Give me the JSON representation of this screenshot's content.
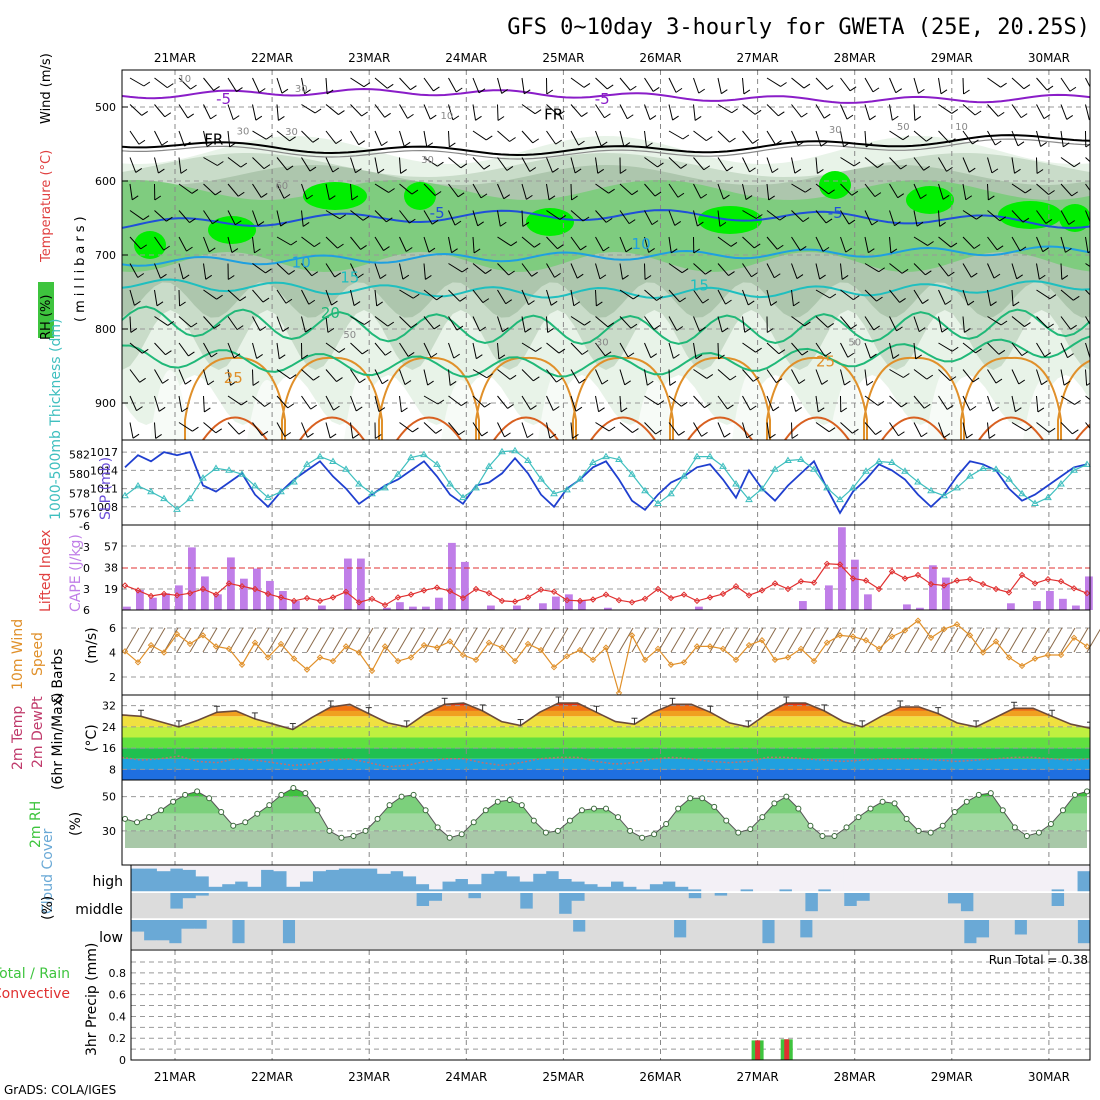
{
  "title": "GFS 0~10day 3-hourly for GWETA (25E, 20.25S)",
  "footer": "GrADS: COLA/IGES",
  "run_total": "Run Total = 0.38",
  "colors": {
    "rh_green": "#3ec43e",
    "lime": "#00ee00",
    "frz": "#000000",
    "t_purple": "#8a1dc8",
    "t_blue": "#1f4fd8",
    "t_lblue": "#1fa0e0",
    "t_teal": "#1fbfbf",
    "t_green": "#20b878",
    "t_orange": "#e0902a",
    "cape": "#c07ee8",
    "lifted": "#e03030",
    "wind10": "#e0902a",
    "temp_dew": "#c03a6b",
    "cloud": "#6aa9d6",
    "rain": "#e03030",
    "precip": "#3ec43e",
    "slp": "#1f3fcf",
    "thick": "#3fbfbf"
  },
  "chart_data": [
    {
      "type": "heatmap",
      "name": "upper_air",
      "ylabel_parts": [
        "RH (%)",
        "Temperature (°C)",
        "Wind (m/s)"
      ],
      "ylabel_unit": "(millibars)",
      "x": [
        "21MAR",
        "22MAR",
        "23MAR",
        "24MAR",
        "25MAR",
        "26MAR",
        "27MAR",
        "28MAR",
        "29MAR",
        "30MAR"
      ],
      "yticks": [
        500,
        600,
        700,
        800,
        900
      ],
      "ylim": [
        950,
        450
      ],
      "contour_labels": [
        {
          "text": "-5",
          "x": "21.5MAR",
          "level": 496
        },
        {
          "text": "-5",
          "x": "25.4MAR",
          "level": 496
        },
        {
          "text": "FR",
          "x": "21.4MAR",
          "level": 551
        },
        {
          "text": "FR",
          "x": "24.9MAR",
          "level": 517
        },
        {
          "text": "-5",
          "x": "23.7MAR",
          "level": 650
        },
        {
          "text": "-5",
          "x": "27.8MAR",
          "level": 650
        },
        {
          "text": "10",
          "x": "22.3MAR",
          "level": 717
        },
        {
          "text": "10",
          "x": "25.8MAR",
          "level": 692
        },
        {
          "text": "15",
          "x": "22.8MAR",
          "level": 737
        },
        {
          "text": "15",
          "x": "26.4MAR",
          "level": 748
        },
        {
          "text": "20",
          "x": "22.6MAR",
          "level": 785
        },
        {
          "text": "25",
          "x": "21.6MAR",
          "level": 873
        },
        {
          "text": "25",
          "x": "27.7MAR",
          "level": 851
        },
        {
          "text": "10",
          "x": "21.1MAR",
          "level": 466
        },
        {
          "text": "10",
          "x": "23.8MAR",
          "level": 516
        },
        {
          "text": "30",
          "x": "21.7MAR",
          "level": 537
        },
        {
          "text": "30",
          "x": "22.2MAR",
          "level": 538
        },
        {
          "text": "30",
          "x": "23.6MAR",
          "level": 576
        },
        {
          "text": "30",
          "x": "27.8MAR",
          "level": 535
        },
        {
          "text": "50",
          "x": "28.5MAR",
          "level": 531
        },
        {
          "text": "10",
          "x": "29.1MAR",
          "level": 531
        },
        {
          "text": "50",
          "x": "22.8MAR",
          "level": 812
        },
        {
          "text": "30",
          "x": "25.4MAR",
          "level": 822
        },
        {
          "text": "50",
          "x": "28.0MAR",
          "level": 822
        },
        {
          "text": "60",
          "x": "22.1MAR",
          "level": 611
        },
        {
          "text": "30",
          "x": "22.3MAR",
          "level": 480
        }
      ]
    },
    {
      "type": "line",
      "name": "slp_thickness",
      "ylabel_left": "1000-500mb Thickness (dm)",
      "ylabel_right": "SLP (mb)",
      "yticks_left": [
        576,
        578,
        580,
        582
      ],
      "yticks_right": [
        1008,
        1011,
        1014,
        1017
      ],
      "series": [
        {
          "name": "SLP (mb)",
          "values": [
            1014.5,
            1016.5,
            1015.5,
            1017.0,
            1016.5,
            1017.0,
            1011.5,
            1010.5,
            1012.0,
            1013.5,
            1010.0,
            1008.0,
            1010.5,
            1012.5,
            1014.0,
            1015.5,
            1013.0,
            1011.0,
            1008.5,
            1010.0,
            1011.5,
            1012.5,
            1014.0,
            1015.5,
            1013.0,
            1010.0,
            1008.5,
            1011.5,
            1012.0,
            1013.5,
            1016.0,
            1013.5,
            1010.0,
            1008.0,
            1011.0,
            1012.5,
            1014.5,
            1015.5,
            1012.5,
            1009.0,
            1007.5,
            1010.0,
            1012.0,
            1013.0,
            1014.5,
            1015.0,
            1012.5,
            1009.5,
            1014.0,
            1011.0,
            1009.0,
            1011.5,
            1013.5,
            1015.5,
            1011.0,
            1007.0,
            1010.5,
            1012.5,
            1015.0,
            1014.0,
            1012.5,
            1010.0,
            1008.0,
            1010.0,
            1013.0,
            1015.5,
            1015.0,
            1014.0,
            1011.0,
            1009.0,
            1010.0,
            1011.5,
            1013.0,
            1014.5,
            1015.0
          ]
        },
        {
          "name": "1000-500mb Thickness (dm)",
          "values": [
            577.8,
            578.8,
            578.2,
            577.5,
            576.4,
            577.5,
            579.6,
            580.6,
            580.4,
            580.0,
            578.8,
            577.6,
            578.2,
            579.2,
            581.0,
            581.8,
            581.3,
            580.5,
            579.0,
            578.0,
            578.6,
            580.0,
            581.7,
            582.0,
            581.0,
            579.0,
            577.6,
            578.6,
            580.8,
            582.3,
            582.4,
            581.4,
            579.5,
            578.0,
            578.4,
            579.5,
            581.2,
            581.8,
            581.5,
            580.0,
            578.3,
            577.0,
            578.0,
            579.8,
            581.8,
            581.8,
            580.8,
            579.0,
            577.4,
            578.5,
            580.5,
            581.4,
            581.5,
            580.5,
            578.6,
            577.4,
            578.6,
            580.3,
            581.3,
            581.2,
            580.3,
            579.2,
            578.3,
            577.8,
            578.6,
            579.8,
            580.6,
            580.5,
            579.5,
            578.0,
            577.0,
            577.6,
            579.0,
            580.4,
            581.0
          ]
        }
      ]
    },
    {
      "type": "bar",
      "name": "cape_li",
      "ylabel_left": "Lifted Index",
      "ylabel_right": "CAPE (J/kg)",
      "yticks_left": [
        "-6",
        "-3",
        "0",
        "3",
        "6"
      ],
      "yticks_right": [
        "19",
        "38",
        "57"
      ],
      "series": [
        {
          "name": "CAPE (J/kg)",
          "values": [
            3,
            18,
            11,
            15,
            22,
            56,
            30,
            14,
            47,
            28,
            37,
            26,
            17,
            8,
            0,
            4,
            0,
            46,
            46,
            0,
            2,
            7,
            3,
            3,
            11,
            60,
            43,
            0,
            4,
            0,
            4,
            0,
            6,
            12,
            14,
            9,
            0,
            2,
            0,
            0,
            0,
            0,
            0,
            0,
            3,
            0,
            0,
            0,
            0,
            0,
            0,
            0,
            8,
            0,
            22,
            74,
            45,
            14,
            0,
            0,
            5,
            2,
            40,
            29,
            0,
            0,
            0,
            0,
            6,
            0,
            8,
            17,
            10,
            4,
            30
          ]
        },
        {
          "name": "Lifted Index",
          "values": [
            2.5,
            3.2,
            4.0,
            3.7,
            3.9,
            3.6,
            3.0,
            3.8,
            2.2,
            2.6,
            3.0,
            3.7,
            4.2,
            4.7,
            4.3,
            4.7,
            4.2,
            3.4,
            4.9,
            4.4,
            5.3,
            4.2,
            3.8,
            3.2,
            2.8,
            3.3,
            4.3,
            3.0,
            3.6,
            4.7,
            4.8,
            4.2,
            3.1,
            3.4,
            4.6,
            4.7,
            4.5,
            3.8,
            4.6,
            4.9,
            4.4,
            3.0,
            4.3,
            3.8,
            4.7,
            4.2,
            3.7,
            2.6,
            3.9,
            3.2,
            2.2,
            3.0,
            1.9,
            2.1,
            -0.6,
            -0.5,
            1.5,
            1.8,
            3.0,
            0.5,
            1.5,
            1.0,
            2.3,
            2.5,
            1.8,
            1.6,
            2.3,
            3.0,
            3.5,
            1.0,
            2.2,
            1.6,
            1.9,
            2.9,
            3.6
          ]
        }
      ]
    },
    {
      "type": "line",
      "name": "wind10",
      "ylabel": "10m Wind Speed & Barbs (m/s)",
      "yticks": [
        2,
        4,
        6
      ],
      "series": [
        {
          "name": "Speed",
          "values": [
            4.1,
            3.2,
            4.6,
            4.0,
            5.5,
            4.7,
            5.4,
            4.5,
            4.3,
            3.0,
            4.8,
            3.6,
            4.7,
            3.5,
            2.6,
            3.6,
            3.3,
            4.5,
            4.0,
            2.5,
            4.5,
            3.3,
            3.6,
            4.6,
            4.4,
            4.9,
            3.8,
            3.4,
            4.8,
            4.4,
            3.3,
            4.7,
            4.2,
            2.8,
            3.7,
            4.2,
            3.4,
            4.4,
            0.7,
            5.4,
            3.4,
            4.3,
            3.0,
            3.2,
            4.5,
            4.5,
            4.3,
            3.4,
            4.6,
            5.0,
            3.4,
            3.6,
            4.3,
            3.3,
            4.8,
            5.4,
            5.3,
            5.0,
            4.3,
            5.3,
            5.8,
            6.6,
            5.2,
            5.9,
            6.3,
            5.4,
            4.0,
            4.9,
            3.6,
            2.9,
            3.5,
            3.8,
            3.8,
            5.2,
            4.5
          ]
        }
      ]
    },
    {
      "type": "area",
      "name": "temp2m",
      "ylabel": "2m Temp 2m DewPt (6hr Min/Max) (°C)",
      "yticks": [
        8,
        16,
        24,
        32
      ],
      "series": [
        {
          "name": "2m Temp",
          "values": [
            28.5,
            28.0,
            26.0,
            24.0,
            26.5,
            29.5,
            30.0,
            27.0,
            25.0,
            23.0,
            27.5,
            31.5,
            32.5,
            29.0,
            25.5,
            24.0,
            29.0,
            32.5,
            33.0,
            30.0,
            26.0,
            24.5,
            29.5,
            33.0,
            33.0,
            29.5,
            26.0,
            25.0,
            29.5,
            32.5,
            32.5,
            29.5,
            25.5,
            24.0,
            29.0,
            33.0,
            33.0,
            30.0,
            26.0,
            24.0,
            28.0,
            31.5,
            31.5,
            29.0,
            25.5,
            24.0,
            27.5,
            31.0,
            31.0,
            28.0,
            25.0,
            23.5
          ]
        },
        {
          "name": "2m DewPt",
          "values": [
            12.5,
            11.5,
            12.0,
            13.0,
            11.0,
            10.5,
            12.0,
            11.5,
            10.5,
            9.5,
            10.0,
            11.5,
            12.0,
            10.5,
            9.0,
            9.5,
            11.0,
            12.0,
            12.0,
            10.5,
            9.5,
            10.5,
            12.0,
            12.5,
            12.5,
            11.0,
            10.0,
            10.5,
            12.0,
            12.5,
            12.0,
            11.0,
            10.5,
            11.0,
            12.5,
            12.5,
            12.0,
            11.5,
            11.0,
            11.5,
            12.0,
            12.0,
            12.0,
            11.5,
            11.0,
            11.5,
            12.0,
            12.5,
            12.5,
            12.0,
            11.5,
            12.0
          ]
        }
      ]
    },
    {
      "type": "area",
      "name": "rh2m",
      "ylabel": "2m RH (%)",
      "yticks": [
        30,
        50
      ],
      "series": [
        {
          "name": "2m RH",
          "values": [
            37,
            35,
            38,
            42,
            47,
            51,
            53,
            49,
            41,
            33,
            35,
            40,
            45,
            51,
            55,
            52,
            42,
            30,
            26,
            27,
            30,
            37,
            45,
            50,
            51,
            42,
            32,
            26,
            28,
            35,
            42,
            47,
            48,
            45,
            36,
            29,
            30,
            36,
            42,
            43,
            43,
            38,
            30,
            26,
            28,
            34,
            43,
            49,
            49,
            44,
            36,
            29,
            31,
            38,
            46,
            50,
            43,
            33,
            27,
            27,
            32,
            38,
            43,
            47,
            46,
            37,
            30,
            29,
            33,
            41,
            47,
            51,
            52,
            42,
            32,
            27,
            29,
            34,
            42,
            51,
            53
          ]
        }
      ]
    },
    {
      "type": "bar",
      "name": "cloud",
      "ylabel": "Cloud Cover (%)",
      "ylabels": [
        "high",
        "middle",
        "low"
      ],
      "series": [
        {
          "name": "high",
          "values": [
            90,
            90,
            80,
            90,
            85,
            60,
            20,
            30,
            40,
            20,
            85,
            80,
            20,
            40,
            80,
            85,
            90,
            90,
            90,
            70,
            80,
            60,
            30,
            10,
            40,
            50,
            30,
            70,
            80,
            60,
            40,
            70,
            80,
            50,
            40,
            30,
            20,
            40,
            20,
            10,
            30,
            40,
            20,
            10,
            0,
            0,
            0,
            10,
            0,
            0,
            10,
            0,
            0,
            10,
            0,
            0,
            0,
            0,
            0,
            0,
            0,
            0,
            0,
            0,
            0,
            0,
            0,
            0,
            0,
            0,
            0,
            10,
            0,
            80
          ]
        },
        {
          "name": "middle",
          "values": [
            0,
            0,
            0,
            60,
            20,
            10,
            0,
            0,
            0,
            0,
            0,
            0,
            0,
            0,
            0,
            0,
            0,
            0,
            0,
            0,
            0,
            0,
            50,
            30,
            0,
            0,
            20,
            0,
            0,
            0,
            60,
            0,
            0,
            80,
            30,
            0,
            0,
            0,
            0,
            0,
            0,
            0,
            0,
            20,
            0,
            10,
            0,
            0,
            0,
            0,
            0,
            0,
            70,
            0,
            0,
            50,
            30,
            0,
            0,
            0,
            0,
            0,
            0,
            40,
            70,
            0,
            0,
            0,
            0,
            0,
            0,
            50,
            0,
            0
          ]
        },
        {
          "name": "low",
          "values": [
            40,
            70,
            70,
            80,
            30,
            30,
            0,
            0,
            80,
            0,
            0,
            0,
            80,
            0,
            0,
            0,
            0,
            0,
            0,
            0,
            0,
            0,
            0,
            0,
            0,
            0,
            0,
            0,
            0,
            0,
            0,
            0,
            0,
            0,
            0,
            40,
            0,
            0,
            0,
            0,
            0,
            0,
            0,
            60,
            0,
            0,
            0,
            0,
            0,
            0,
            80,
            0,
            0,
            60,
            0,
            0,
            0,
            0,
            0,
            0,
            0,
            0,
            0,
            0,
            0,
            0,
            80,
            60,
            0,
            0,
            50,
            0,
            0,
            0,
            0,
            80
          ]
        }
      ]
    },
    {
      "type": "bar",
      "name": "precip",
      "ylabel": "3hr Precip (mm)",
      "legend": [
        "Total / Rain",
        "Convective"
      ],
      "yticks": [
        "0",
        "0.2",
        "0.4",
        "0.6",
        "0.8"
      ],
      "series": [
        {
          "name": "Total",
          "values": [
            {
              "x": "27.0MAR",
              "v": 0.18
            },
            {
              "x": "27.3MAR",
              "v": 0.19
            }
          ]
        }
      ]
    }
  ]
}
